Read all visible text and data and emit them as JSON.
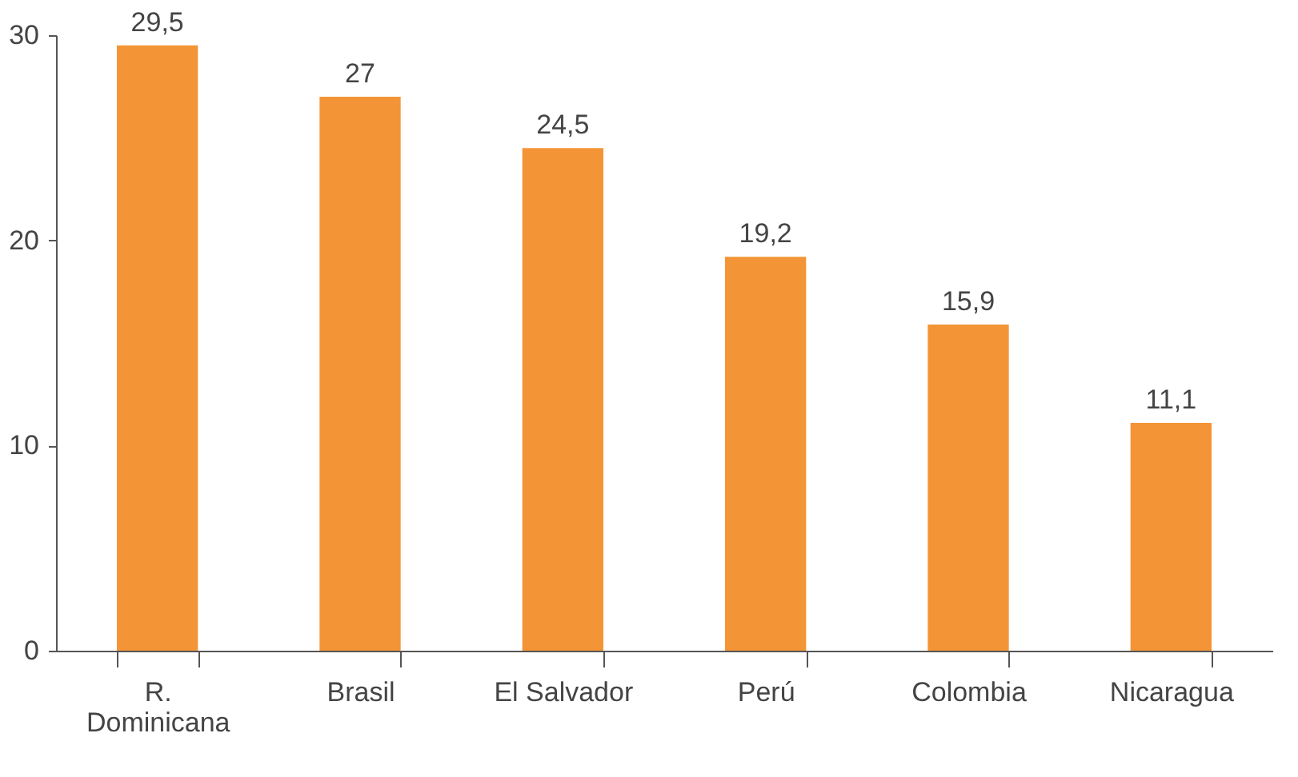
{
  "chart_data": {
    "type": "bar",
    "categories": [
      "R. Dominicana",
      "Brasil",
      "El Salvador",
      "Perú",
      "Colombia",
      "Nicaragua"
    ],
    "values": [
      29.5,
      27,
      24.5,
      19.2,
      15.9,
      11.1
    ],
    "value_labels": [
      "29,5",
      "27",
      "24,5",
      "19,2",
      "15,9",
      "11,1"
    ],
    "color": "#f39536",
    "ylim": [
      0,
      30
    ],
    "yticks": [
      0,
      10,
      20,
      30
    ],
    "grid": false
  }
}
